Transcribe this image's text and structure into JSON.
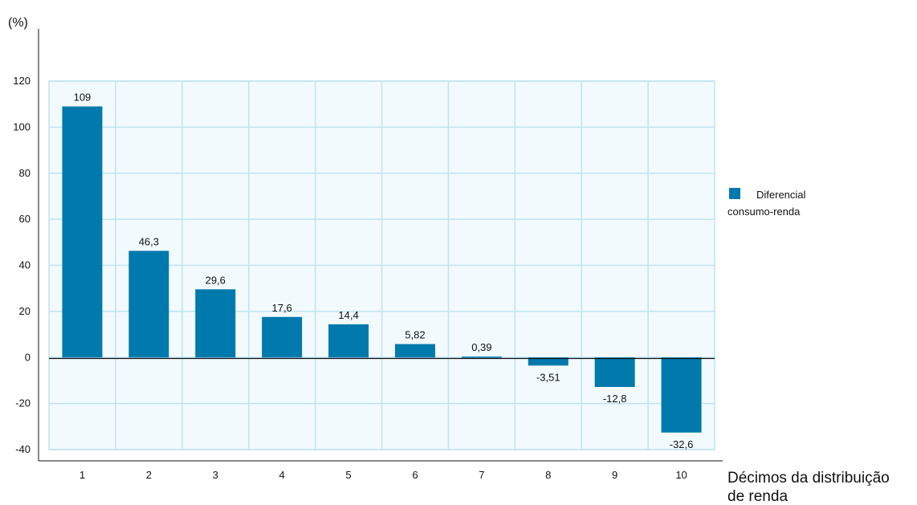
{
  "chart_data": {
    "type": "bar",
    "unit_label": "(%)",
    "xlabel_lines": [
      "Décimos da distribuição",
      "de renda"
    ],
    "categories": [
      "1",
      "2",
      "3",
      "4",
      "5",
      "6",
      "7",
      "8",
      "9",
      "10"
    ],
    "series": [
      {
        "name": "Diferencial consumo-renda",
        "name_lines": [
          "Diferencial",
          "consumo-renda"
        ],
        "values": [
          109,
          46.3,
          29.6,
          17.6,
          14.4,
          5.82,
          0.39,
          -3.51,
          -12.8,
          -32.6
        ],
        "value_labels": [
          "109",
          "46,3",
          "29,6",
          "17,6",
          "14,4",
          "5,82",
          "0,39",
          "-3,51",
          "-12,8",
          "-32,6"
        ],
        "color": "#0079ad"
      }
    ],
    "yticks": [
      -40,
      -20,
      0,
      20,
      40,
      60,
      80,
      100,
      120
    ],
    "ylim": [
      -40,
      120
    ],
    "grid": true,
    "grid_color": "#bfe3f2",
    "plot_background": "#f2fafd",
    "legend_position": "right"
  }
}
